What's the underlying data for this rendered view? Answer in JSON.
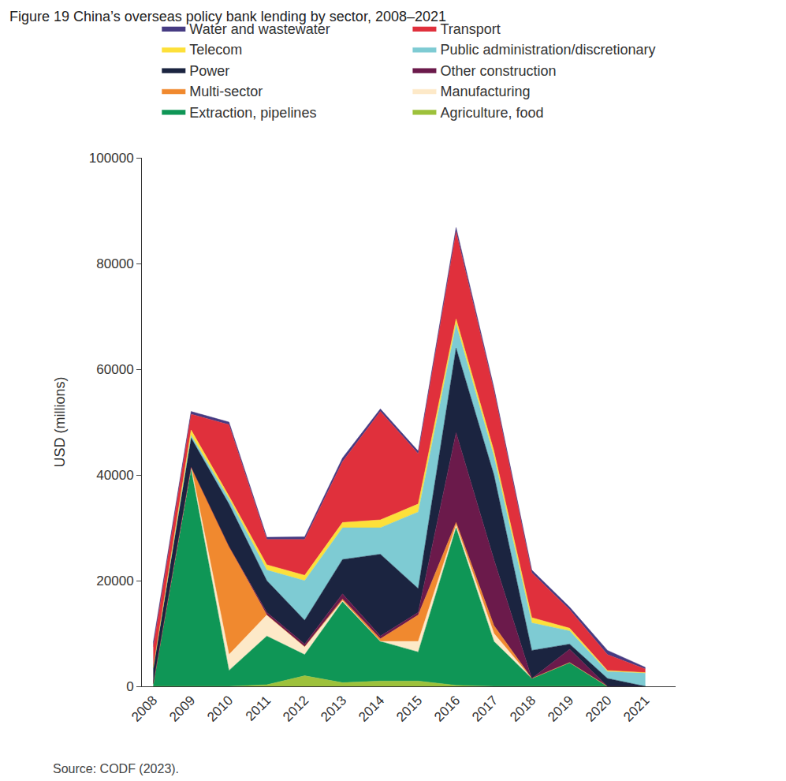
{
  "chart_data": {
    "type": "area",
    "title": "Figure 19 China’s overseas policy bank lending by sector, 2008–2021",
    "source": "Source: CODF (2023).",
    "y_label": "USD (millions)",
    "stacked": true,
    "grid": false,
    "legend": "top",
    "categories": [
      "2008",
      "2009",
      "2010",
      "2011",
      "2012",
      "2013",
      "2014",
      "2015",
      "2016",
      "2017",
      "2018",
      "2019",
      "2020",
      "2021"
    ],
    "ylim": [
      0,
      100000
    ],
    "yticks": [
      0,
      20000,
      40000,
      60000,
      80000,
      100000
    ],
    "series": [
      {
        "name": "Agriculture, food",
        "color": "#9dc13b",
        "values": [
          0,
          0,
          0,
          300,
          2000,
          700,
          1000,
          1000,
          200,
          0,
          0,
          0,
          0,
          0
        ]
      },
      {
        "name": "Extraction, pipelines",
        "color": "#0f9656",
        "values": [
          500,
          41000,
          3000,
          9200,
          4000,
          15300,
          7500,
          5500,
          29800,
          8500,
          1500,
          4500,
          0,
          0
        ]
      },
      {
        "name": "Manufacturing",
        "color": "#fde9c8",
        "values": [
          0,
          500,
          3000,
          4000,
          1500,
          200,
          0,
          2000,
          500,
          1500,
          0,
          0,
          0,
          0
        ]
      },
      {
        "name": "Multi-sector",
        "color": "#f0892f",
        "values": [
          0,
          0,
          20500,
          0,
          0,
          300,
          500,
          5000,
          500,
          1500,
          0,
          0,
          0,
          0
        ]
      },
      {
        "name": "Other construction",
        "color": "#6b1a4b",
        "values": [
          0,
          0,
          0,
          500,
          500,
          1000,
          500,
          500,
          17000,
          12500,
          0,
          2500,
          0,
          0
        ]
      },
      {
        "name": "Power",
        "color": "#1b2440",
        "values": [
          3000,
          5500,
          8000,
          6000,
          4500,
          6500,
          15500,
          4500,
          16000,
          16000,
          5300,
          1000,
          1500,
          0
        ]
      },
      {
        "name": "Public administration/discretionary",
        "color": "#7ecbd3",
        "values": [
          0,
          500,
          1000,
          2000,
          7500,
          6000,
          5000,
          14500,
          4500,
          3500,
          5200,
          2500,
          1300,
          2500
        ]
      },
      {
        "name": "Telecom",
        "color": "#fde03a",
        "values": [
          0,
          1000,
          500,
          1000,
          1000,
          1000,
          1500,
          1500,
          1000,
          1000,
          1000,
          500,
          200,
          100
        ]
      },
      {
        "name": "Transport",
        "color": "#e0303c",
        "values": [
          4000,
          3000,
          13500,
          4800,
          6800,
          11500,
          20500,
          9500,
          16500,
          11500,
          8500,
          3500,
          3000,
          700
        ]
      },
      {
        "name": "Water and wastewater",
        "color": "#463b82",
        "values": [
          800,
          500,
          500,
          400,
          500,
          700,
          500,
          500,
          800,
          500,
          500,
          500,
          800,
          300
        ]
      }
    ]
  }
}
